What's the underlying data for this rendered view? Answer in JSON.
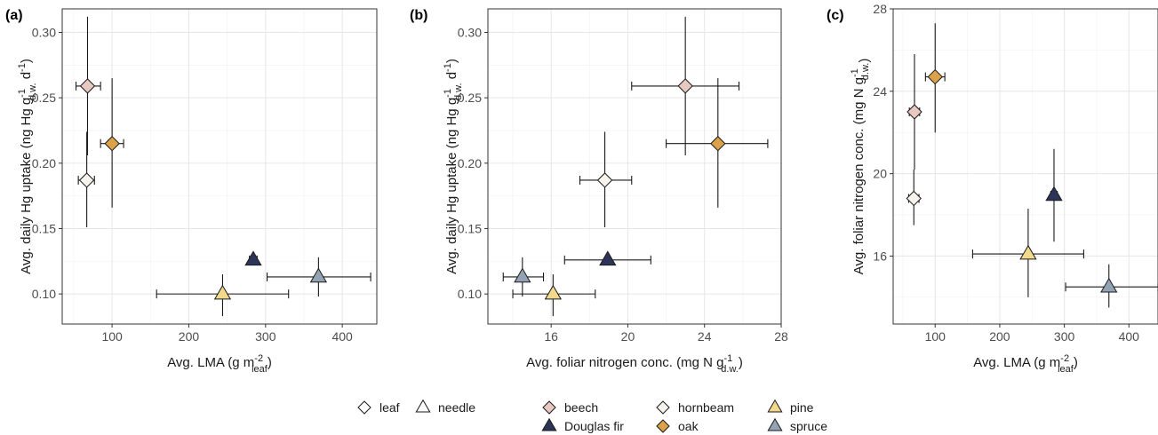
{
  "colors": {
    "beech": "#e8c9c2",
    "hornbeam": "#f7f4ee",
    "pine": "#f2d98c",
    "douglas_fir": "#2c3558",
    "oak": "#dba24a",
    "spruce": "#93a3b4",
    "shape_outline": "#ffffff"
  },
  "legend": {
    "shape_items": [
      {
        "label": "leaf",
        "shape": "diamond"
      },
      {
        "label": "needle",
        "shape": "triangle"
      }
    ],
    "species_items": [
      {
        "label": "beech",
        "shape": "diamond",
        "color_key": "beech"
      },
      {
        "label": "hornbeam",
        "shape": "diamond",
        "color_key": "hornbeam"
      },
      {
        "label": "pine",
        "shape": "triangle",
        "color_key": "pine"
      },
      {
        "label": "Douglas fir",
        "shape": "triangle",
        "color_key": "douglas_fir"
      },
      {
        "label": "oak",
        "shape": "diamond",
        "color_key": "oak"
      },
      {
        "label": "spruce",
        "shape": "triangle",
        "color_key": "spruce"
      }
    ]
  },
  "chart_data": [
    {
      "panel": "(a)",
      "type": "scatter",
      "xlabel": "Avg. LMA (g m",
      "xlabel_sup": "-2",
      "xlabel_sub": "leaf",
      "xlabel_end": ")",
      "ylabel": "Avg. daily Hg uptake  (ng Hg g",
      "ylabel_sub": "d.w.",
      "ylabel_mid": " d",
      "ylabel_sup": "-1",
      "ylabel_sup2": "-1",
      "ylabel_end": ")",
      "xlim": [
        35,
        445
      ],
      "ylim": [
        0.077,
        0.318
      ],
      "xticks": [
        100,
        200,
        300,
        400
      ],
      "yticks": [
        0.1,
        0.15,
        0.2,
        0.25,
        0.3
      ],
      "xtick_labels": [
        "100",
        "200",
        "300",
        "400"
      ],
      "ytick_labels": [
        "0.10",
        "0.15",
        "0.20",
        "0.25",
        "0.30"
      ],
      "points": [
        {
          "species": "beech",
          "x": 68,
          "y": 0.259,
          "xerr": [
            53,
            85
          ],
          "yerr": [
            0.206,
            0.312
          ]
        },
        {
          "species": "hornbeam",
          "x": 67,
          "y": 0.187,
          "xerr": [
            56,
            77
          ],
          "yerr": [
            0.151,
            0.224
          ]
        },
        {
          "species": "oak",
          "x": 100,
          "y": 0.215,
          "xerr": [
            85,
            115
          ],
          "yerr": [
            0.166,
            0.265
          ]
        },
        {
          "species": "Douglas fir",
          "x": 284,
          "y": 0.126,
          "xerr": [
            279,
            289
          ],
          "yerr": [
            0.123,
            0.129
          ]
        },
        {
          "species": "pine",
          "x": 244,
          "y": 0.1,
          "xerr": [
            158,
            330
          ],
          "yerr": [
            0.083,
            0.115
          ]
        },
        {
          "species": "spruce",
          "x": 369,
          "y": 0.113,
          "xerr": [
            302,
            437
          ],
          "yerr": [
            0.098,
            0.128
          ]
        }
      ]
    },
    {
      "panel": "(b)",
      "type": "scatter",
      "xlabel": "Avg. foliar nitrogen conc. (mg N g",
      "xlabel_sup": "-1",
      "xlabel_sub": "d.w.",
      "xlabel_end": ")",
      "ylabel": "Avg. daily Hg uptake  (ng Hg g",
      "ylabel_sub": "d.w.",
      "ylabel_mid": " d",
      "ylabel_sup": "-1",
      "ylabel_sup2": "-1",
      "ylabel_end": ")",
      "xlim": [
        12.7,
        28.0
      ],
      "ylim": [
        0.077,
        0.318
      ],
      "xticks": [
        16,
        20,
        24,
        28
      ],
      "yticks": [
        0.1,
        0.15,
        0.2,
        0.25,
        0.3
      ],
      "xtick_labels": [
        "16",
        "20",
        "24",
        "28"
      ],
      "ytick_labels": [
        "0.10",
        "0.15",
        "0.20",
        "0.25",
        "0.30"
      ],
      "points": [
        {
          "species": "beech",
          "x": 23.0,
          "y": 0.259,
          "xerr": [
            20.2,
            25.8
          ],
          "yerr": [
            0.206,
            0.312
          ]
        },
        {
          "species": "hornbeam",
          "x": 18.8,
          "y": 0.187,
          "xerr": [
            17.5,
            20.2
          ],
          "yerr": [
            0.151,
            0.224
          ]
        },
        {
          "species": "oak",
          "x": 24.7,
          "y": 0.215,
          "xerr": [
            22.0,
            27.3
          ],
          "yerr": [
            0.166,
            0.265
          ]
        },
        {
          "species": "Douglas fir",
          "x": 18.95,
          "y": 0.126,
          "xerr": [
            16.7,
            21.2
          ],
          "yerr": [
            0.123,
            0.129
          ]
        },
        {
          "species": "pine",
          "x": 16.1,
          "y": 0.1,
          "xerr": [
            14.0,
            18.3
          ],
          "yerr": [
            0.083,
            0.115
          ]
        },
        {
          "species": "spruce",
          "x": 14.5,
          "y": 0.113,
          "xerr": [
            13.5,
            15.6
          ],
          "yerr": [
            0.098,
            0.128
          ]
        }
      ]
    },
    {
      "panel": "(c)",
      "type": "scatter",
      "xlabel": "Avg. LMA (g m",
      "xlabel_sup": "-2",
      "xlabel_sub": "leaf",
      "xlabel_end": ")",
      "ylabel": "Avg. foliar nitrogen conc.  (mg N g",
      "ylabel_sub": "d.w.",
      "ylabel_mid": "",
      "ylabel_sup": "-1",
      "ylabel_sup2": "",
      "ylabel_end": ")",
      "xlim": [
        35,
        445
      ],
      "ylim": [
        12.7,
        28.0
      ],
      "xticks": [
        100,
        200,
        300,
        400
      ],
      "yticks": [
        16,
        20,
        24,
        28
      ],
      "xtick_labels": [
        "100",
        "200",
        "300",
        "400"
      ],
      "ytick_labels": [
        "16",
        "20",
        "24",
        "28"
      ],
      "points": [
        {
          "species": "beech",
          "x": 68,
          "y": 23.0,
          "xerr": [
            60,
            76
          ],
          "yerr": [
            20.2,
            25.8
          ]
        },
        {
          "species": "hornbeam",
          "x": 67,
          "y": 18.8,
          "xerr": [
            59,
            75
          ],
          "yerr": [
            17.5,
            20.2
          ]
        },
        {
          "species": "oak",
          "x": 100,
          "y": 24.7,
          "xerr": [
            85,
            115
          ],
          "yerr": [
            22.0,
            27.3
          ]
        },
        {
          "species": "Douglas fir",
          "x": 284,
          "y": 18.95,
          "xerr": [
            279,
            289
          ],
          "yerr": [
            16.7,
            21.2
          ]
        },
        {
          "species": "pine",
          "x": 244,
          "y": 16.1,
          "xerr": [
            158,
            330
          ],
          "yerr": [
            14.0,
            18.3
          ]
        },
        {
          "species": "spruce",
          "x": 369,
          "y": 14.5,
          "xerr": [
            302,
            445
          ],
          "yerr": [
            13.5,
            15.6
          ]
        }
      ]
    }
  ]
}
